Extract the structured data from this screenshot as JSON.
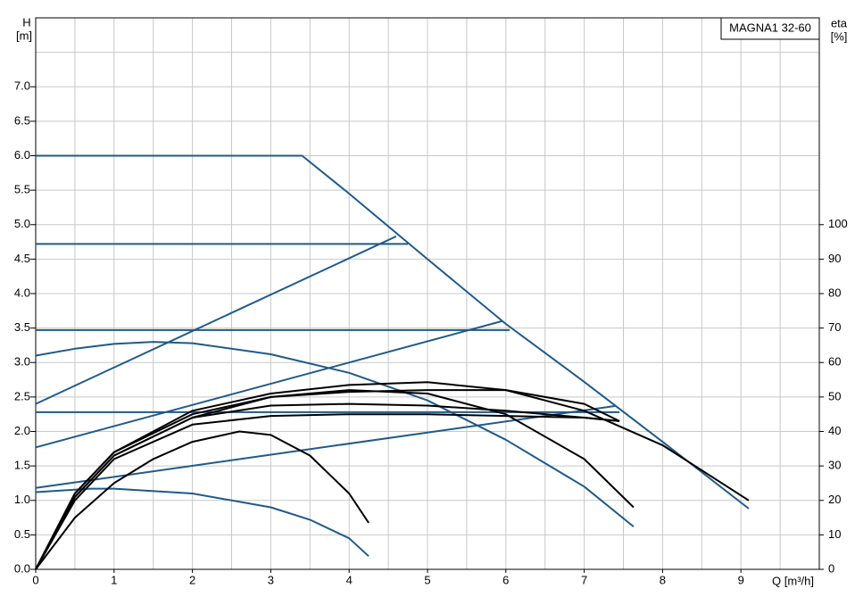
{
  "chart_data": {
    "type": "line",
    "title": "MAGNA1 32-60",
    "y_label": "H",
    "y_unit": "[m]",
    "y2_label": "eta",
    "y2_unit": "[%]",
    "x_label": "Q [m³/h]",
    "xlim": [
      0,
      10
    ],
    "xticks": [
      0,
      1,
      2,
      3,
      4,
      5,
      6,
      7,
      8,
      9
    ],
    "xgrid": [
      0.5,
      1.5,
      2.5,
      3.5,
      4.5,
      5.5,
      6.5,
      7.5,
      8.5,
      9.5
    ],
    "ylim": [
      0,
      8
    ],
    "yticks": [
      {
        "value": 0,
        "label": "0.0"
      },
      0.5,
      {
        "value": 1,
        "label": "1.0"
      },
      1.5,
      {
        "value": 2,
        "label": "2.0"
      },
      2.5,
      {
        "value": 3,
        "label": "3.0"
      },
      3.5,
      {
        "value": 4,
        "label": "4.0"
      },
      4.5,
      {
        "value": 5,
        "label": "5.0"
      },
      5.5,
      {
        "value": 6,
        "label": "6.0"
      },
      6.5,
      {
        "value": 7,
        "label": "7.0"
      }
    ],
    "ygrid": [
      7.5
    ],
    "y2lim": [
      0,
      160
    ],
    "y2ticks": [
      0,
      10,
      20,
      30,
      40,
      50,
      60,
      70,
      80,
      90,
      100
    ],
    "grid": true,
    "series": [
      {
        "color": "#1f5a8a",
        "x": [
          0,
          3.4,
          4,
          5,
          6,
          7,
          8,
          9.1
        ],
        "values": [
          6.0,
          6.0,
          5.45,
          4.5,
          3.56,
          2.72,
          1.85,
          0.88
        ]
      },
      {
        "color": "#1f5a8a",
        "x": [
          0,
          4.75
        ],
        "values": [
          4.72,
          4.72
        ]
      },
      {
        "color": "#1f5a8a",
        "x": [
          0,
          6.05
        ],
        "values": [
          3.47,
          3.47
        ]
      },
      {
        "color": "#1f5a8a",
        "x": [
          0,
          7.45
        ],
        "values": [
          2.28,
          2.28
        ]
      },
      {
        "color": "#1f5a8a",
        "x": [
          0,
          4.6
        ],
        "values": [
          2.4,
          4.83
        ]
      },
      {
        "color": "#1f5a8a",
        "x": [
          0,
          5.95
        ],
        "values": [
          1.77,
          3.6
        ]
      },
      {
        "color": "#1f5a8a",
        "x": [
          0,
          7.4
        ],
        "values": [
          1.18,
          2.37
        ]
      },
      {
        "color": "#1f5a8a",
        "x": [
          0,
          0.5,
          1,
          1.5,
          2,
          3,
          4,
          5,
          6,
          7,
          7.63
        ],
        "values": [
          3.1,
          3.2,
          3.27,
          3.3,
          3.28,
          3.12,
          2.85,
          2.45,
          1.88,
          1.2,
          0.62
        ]
      },
      {
        "color": "#1f5a8a",
        "x": [
          0,
          0.7,
          1,
          2,
          3,
          3.5,
          4,
          4.25
        ],
        "values": [
          1.12,
          1.17,
          1.17,
          1.1,
          0.9,
          0.72,
          0.45,
          0.19
        ]
      },
      {
        "color": "#000000",
        "axis": "y2",
        "x": [
          0,
          0.5,
          1,
          1.5,
          2,
          2.6,
          3,
          3.5,
          4,
          4.25
        ],
        "values": [
          0,
          15,
          25,
          32,
          37,
          40,
          39,
          33,
          22,
          13.5
        ]
      },
      {
        "color": "#000000",
        "axis": "y2",
        "x": [
          0,
          0.5,
          1,
          2,
          3,
          4,
          5,
          6,
          7,
          7.63
        ],
        "values": [
          0,
          21,
          33,
          44,
          50,
          52,
          51,
          45,
          32,
          18
        ]
      },
      {
        "color": "#000000",
        "axis": "y2",
        "x": [
          0,
          0.5,
          1,
          2,
          3,
          4,
          5,
          6,
          7,
          8,
          9.1
        ],
        "values": [
          0,
          22,
          34,
          46,
          51,
          53.5,
          54.3,
          52,
          46,
          36,
          20
        ]
      },
      {
        "color": "#000000",
        "axis": "y2",
        "x": [
          0,
          0.5,
          1,
          2,
          3,
          4,
          5,
          6,
          7,
          7.45
        ],
        "values": [
          0,
          22,
          34,
          45,
          50,
          51.5,
          52,
          52,
          48,
          43
        ]
      },
      {
        "color": "#000000",
        "axis": "y2",
        "x": [
          0,
          0.5,
          1,
          2,
          3,
          4,
          5,
          6,
          7,
          7.45
        ],
        "values": [
          0,
          21,
          33,
          44,
          47.5,
          48,
          47.5,
          46,
          44,
          43
        ]
      },
      {
        "color": "#000000",
        "axis": "y2",
        "x": [
          0,
          0.5,
          1,
          2,
          3,
          4,
          5,
          6,
          7,
          7.45
        ],
        "values": [
          0,
          20,
          32,
          42,
          44.5,
          45,
          45,
          44.5,
          44,
          43
        ]
      }
    ]
  }
}
